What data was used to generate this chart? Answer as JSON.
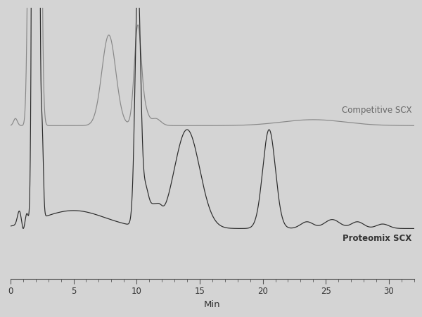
{
  "xlabel": "Min",
  "xlim": [
    0,
    32
  ],
  "background_color": "#d4d4d4",
  "line_color_competitive": "#888888",
  "line_color_proteomix": "#2a2a2a",
  "label_competitive": "Competitive SCX",
  "label_proteomix": "Proteomix SCX",
  "label_fontsize": 8.5,
  "xlabel_fontsize": 9.5,
  "tick_fontsize": 8.5,
  "comp_baseline": 0.565,
  "prot_baseline": 0.185,
  "ylim": [
    0,
    1.0
  ]
}
